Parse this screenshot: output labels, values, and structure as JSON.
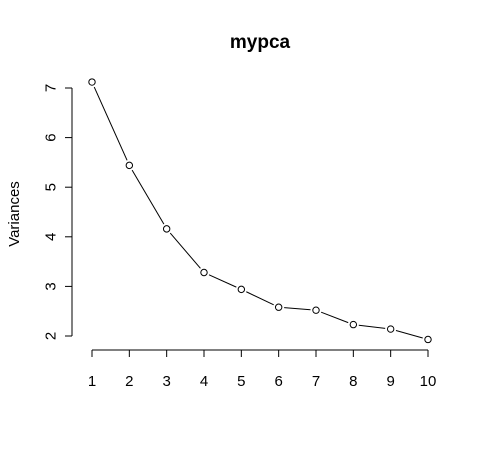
{
  "chart_data": {
    "type": "line",
    "title": "mypca",
    "xlabel": "",
    "ylabel": "Variances",
    "x": [
      1,
      2,
      3,
      4,
      5,
      6,
      7,
      8,
      9,
      10
    ],
    "xticks": [
      1,
      2,
      3,
      4,
      5,
      6,
      7,
      8,
      9,
      10
    ],
    "yticks": [
      2,
      3,
      4,
      5,
      6,
      7
    ],
    "series": [
      {
        "values": [
          7.12,
          5.44,
          4.16,
          3.28,
          2.94,
          2.58,
          2.52,
          2.23,
          2.14,
          1.93
        ]
      }
    ],
    "xlim": [
      1,
      10
    ],
    "ylim": [
      2,
      7
    ],
    "grid": false,
    "legend": "none",
    "markers": "open-circle",
    "line_color": "#000000"
  }
}
